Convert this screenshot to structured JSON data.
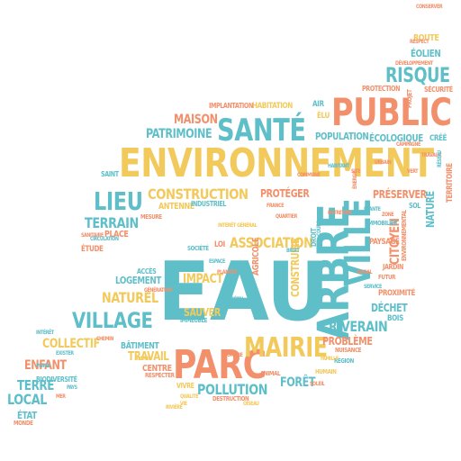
{
  "palette": {
    "teal": "#5fbfc9",
    "yellow": "#f2c95b",
    "salmon": "#f2906b"
  },
  "words": [
    {
      "text": "EAU",
      "color": "teal"
    },
    {
      "text": "ENVIRONNEMENT",
      "color": "yellow"
    },
    {
      "text": "ARBRE",
      "color": "teal"
    },
    {
      "text": "PARC",
      "color": "salmon"
    },
    {
      "text": "PUBLIC",
      "color": "salmon"
    },
    {
      "text": "VILLE",
      "color": "teal"
    },
    {
      "text": "SANTÉ",
      "color": "teal"
    },
    {
      "text": "MAIRIE",
      "color": "yellow"
    },
    {
      "text": "RISQUE",
      "color": "teal"
    },
    {
      "text": "VILLAGE",
      "color": "teal"
    },
    {
      "text": "LIEU",
      "color": "teal"
    },
    {
      "text": "CONSTRUCTION",
      "color": "yellow"
    },
    {
      "text": "CITOYEN",
      "color": "salmon"
    },
    {
      "text": "TERRAIN",
      "color": "teal"
    },
    {
      "text": "ASSOCIATION",
      "color": "yellow"
    },
    {
      "text": "NATUREL",
      "color": "yellow"
    },
    {
      "text": "POLLUTION",
      "color": "teal"
    },
    {
      "text": "RIVERAIN",
      "color": "teal"
    },
    {
      "text": "PATRIMOINE",
      "color": "teal"
    },
    {
      "text": "MAISON",
      "color": "salmon"
    },
    {
      "text": "COLLECTIF",
      "color": "yellow"
    },
    {
      "text": "ENFANT",
      "color": "salmon"
    },
    {
      "text": "TERRE",
      "color": "teal"
    },
    {
      "text": "LOCAL",
      "color": "teal"
    },
    {
      "text": "FORÊT",
      "color": "teal"
    },
    {
      "text": "PROTÉGER",
      "color": "salmon"
    },
    {
      "text": "PRÉSERVER",
      "color": "salmon"
    },
    {
      "text": "ÉCOLOGIQUE",
      "color": "teal"
    },
    {
      "text": "POPULATION",
      "color": "teal"
    },
    {
      "text": "PROBLÈME",
      "color": "salmon"
    },
    {
      "text": "TRAVAIL",
      "color": "yellow"
    },
    {
      "text": "IMPACT",
      "color": "yellow"
    },
    {
      "text": "LOGEMENT",
      "color": "teal"
    },
    {
      "text": "SAUVER",
      "color": "yellow"
    },
    {
      "text": "DÉCHET",
      "color": "teal"
    },
    {
      "text": "CONSTRUIRE",
      "color": "yellow"
    },
    {
      "text": "NATURE",
      "color": "teal"
    },
    {
      "text": "TERRITOIRE",
      "color": "salmon"
    },
    {
      "text": "ÉOLIEN",
      "color": "teal"
    },
    {
      "text": "ROUTE",
      "color": "yellow"
    },
    {
      "text": "ÉTAT",
      "color": "teal"
    },
    {
      "text": "HABITATION",
      "color": "yellow"
    },
    {
      "text": "IMPLANTATION",
      "color": "salmon"
    },
    {
      "text": "PROTECTION",
      "color": "salmon"
    },
    {
      "text": "SÉCURITÉ",
      "color": "salmon"
    },
    {
      "text": "BÂTIMENT",
      "color": "teal"
    },
    {
      "text": "CENTRE",
      "color": "salmon"
    },
    {
      "text": "PLACE",
      "color": "salmon"
    },
    {
      "text": "ANTENNE",
      "color": "yellow"
    },
    {
      "text": "INDUSTRIEL",
      "color": "teal"
    },
    {
      "text": "CRÉÉ",
      "color": "teal"
    },
    {
      "text": "PAYSAGE",
      "color": "salmon"
    },
    {
      "text": "PROXIMITÉ",
      "color": "salmon"
    },
    {
      "text": "BOIS",
      "color": "teal"
    },
    {
      "text": "IMMOBILIER",
      "color": "teal"
    },
    {
      "text": "JARDIN",
      "color": "salmon"
    },
    {
      "text": "SOCIÉTÉ",
      "color": "teal"
    },
    {
      "text": "BIODIVERSITÉ",
      "color": "teal"
    },
    {
      "text": "INTÉRÊT",
      "color": "teal"
    },
    {
      "text": "RÉGION",
      "color": "teal"
    },
    {
      "text": "NUISANCE",
      "color": "salmon"
    },
    {
      "text": "HUMAIN",
      "color": "yellow"
    },
    {
      "text": "ANIMAL",
      "color": "salmon"
    },
    {
      "text": "VIVRE",
      "color": "yellow"
    },
    {
      "text": "DESTRUCTION",
      "color": "salmon"
    },
    {
      "text": "RESPECTER",
      "color": "salmon"
    },
    {
      "text": "ÉTUDE",
      "color": "salmon"
    },
    {
      "text": "MESURE",
      "color": "salmon"
    },
    {
      "text": "SANITAIRE",
      "color": "salmon"
    },
    {
      "text": "SAINT",
      "color": "teal"
    },
    {
      "text": "CIRCULATION",
      "color": "teal"
    },
    {
      "text": "ACCÈS",
      "color": "teal"
    },
    {
      "text": "IMMEUBLE",
      "color": "teal"
    },
    {
      "text": "FUTUR",
      "color": "salmon"
    },
    {
      "text": "MONDE",
      "color": "salmon"
    },
    {
      "text": "AIR",
      "color": "teal"
    },
    {
      "text": "CHEMIN",
      "color": "salmon"
    },
    {
      "text": "COURS",
      "color": "teal"
    },
    {
      "text": "SOL",
      "color": "teal"
    },
    {
      "text": "ÉLU",
      "color": "yellow"
    },
    {
      "text": "DÉVELOPPEMENT",
      "color": "salmon"
    },
    {
      "text": "RESPECT",
      "color": "salmon"
    },
    {
      "text": "AGRICOLE",
      "color": "salmon"
    },
    {
      "text": "ÉNERGIE",
      "color": "salmon"
    },
    {
      "text": "EXISTER",
      "color": "teal"
    },
    {
      "text": "LOI",
      "color": "salmon"
    },
    {
      "text": "DROIT",
      "color": "teal"
    },
    {
      "text": "PLANTER",
      "color": "salmon"
    },
    {
      "text": "ESPACE",
      "color": "teal"
    },
    {
      "text": "ENVIRONNEMENTAL",
      "color": "salmon"
    },
    {
      "text": "CONSERVER",
      "color": "salmon"
    },
    {
      "text": "QUALITÉ",
      "color": "yellow"
    },
    {
      "text": "VIE",
      "color": "yellow"
    },
    {
      "text": "PROJET",
      "color": "salmon"
    },
    {
      "text": "CAMPAGNE",
      "color": "salmon"
    },
    {
      "text": "URBAIN",
      "color": "salmon"
    },
    {
      "text": "VERT",
      "color": "salmon"
    },
    {
      "text": "TRAVAUX",
      "color": "salmon"
    },
    {
      "text": "PLANTE",
      "color": "teal"
    },
    {
      "text": "ZONE",
      "color": "salmon"
    },
    {
      "text": "RÉSEAU",
      "color": "teal"
    },
    {
      "text": "SITE",
      "color": "salmon"
    },
    {
      "text": "HABITANT",
      "color": "teal"
    },
    {
      "text": "COMMUNE",
      "color": "salmon"
    },
    {
      "text": "QUARTIER",
      "color": "salmon"
    },
    {
      "text": "ENTRETIEN",
      "color": "salmon"
    },
    {
      "text": "SOCIAL",
      "color": "salmon"
    },
    {
      "text": "SERVICE",
      "color": "teal"
    },
    {
      "text": "FAMILLE",
      "color": "yellow"
    },
    {
      "text": "SOLEIL",
      "color": "salmon"
    },
    {
      "text": "OISEAU",
      "color": "yellow"
    },
    {
      "text": "RIVIÈRE",
      "color": "yellow"
    },
    {
      "text": "PLAGE",
      "color": "teal"
    },
    {
      "text": "MER",
      "color": "salmon"
    },
    {
      "text": "PAYS",
      "color": "teal"
    },
    {
      "text": "AVENIR",
      "color": "yellow"
    },
    {
      "text": "GÉNÉRATION",
      "color": "salmon"
    },
    {
      "text": "INTÉRÊT GÉNÉRAL",
      "color": "yellow"
    },
    {
      "text": "FRANCE",
      "color": "salmon"
    },
    {
      "text": "BRUIT",
      "color": "teal"
    },
    {
      "text": "VÉGÉTAL",
      "color": "teal"
    },
    {
      "text": "OMBRE",
      "color": "salmon"
    }
  ]
}
